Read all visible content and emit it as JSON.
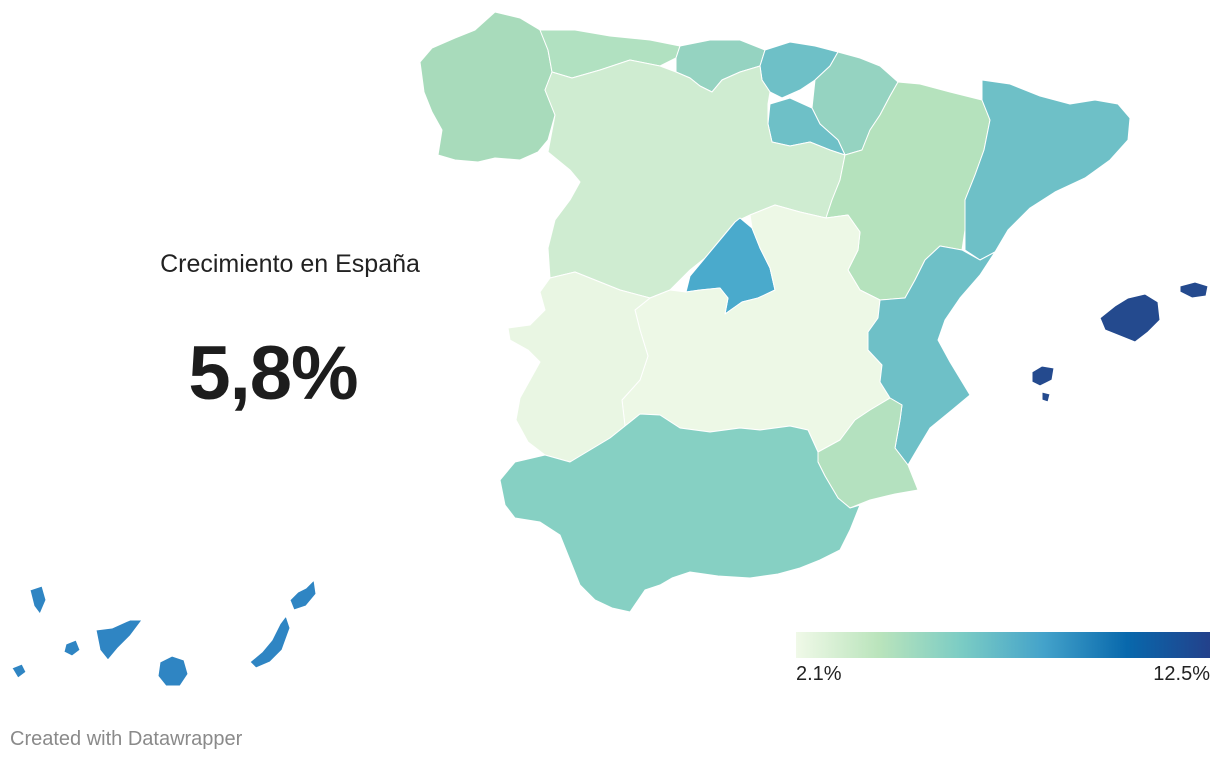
{
  "headline": {
    "label": "Crecimiento en España",
    "value": "5,8%"
  },
  "legend": {
    "min_label": "2.1%",
    "max_label": "12.5%",
    "min_value": 2.1,
    "max_value": 12.5,
    "colors": [
      "#f0f9e8",
      "#bae4bc",
      "#7bccc4",
      "#43a2ca",
      "#0868ac",
      "#23418b"
    ]
  },
  "regions": [
    {
      "id": "galicia",
      "color": "#a8dbbb"
    },
    {
      "id": "asturias",
      "color": "#b1e1c1"
    },
    {
      "id": "cantabria",
      "color": "#95d3c1"
    },
    {
      "id": "pais-vasco",
      "color": "#6ec0c7"
    },
    {
      "id": "navarra",
      "color": "#95d3c1"
    },
    {
      "id": "la-rioja",
      "color": "#6ec0c7"
    },
    {
      "id": "castilla-y-leon",
      "color": "#cfecd1"
    },
    {
      "id": "aragon",
      "color": "#b5e2bd"
    },
    {
      "id": "cataluna",
      "color": "#6ec0c7"
    },
    {
      "id": "madrid",
      "color": "#4aaacc"
    },
    {
      "id": "castilla-la-mancha",
      "color": "#edf8e6"
    },
    {
      "id": "extremadura",
      "color": "#e9f6e3"
    },
    {
      "id": "comunidad-valenciana",
      "color": "#6ec0c7"
    },
    {
      "id": "murcia",
      "color": "#b4e1bf"
    },
    {
      "id": "andalucia",
      "color": "#86d0c3"
    },
    {
      "id": "baleares",
      "color": "#244a8e"
    },
    {
      "id": "canarias",
      "color": "#2f85c3"
    }
  ],
  "credit": "Created with Datawrapper"
}
